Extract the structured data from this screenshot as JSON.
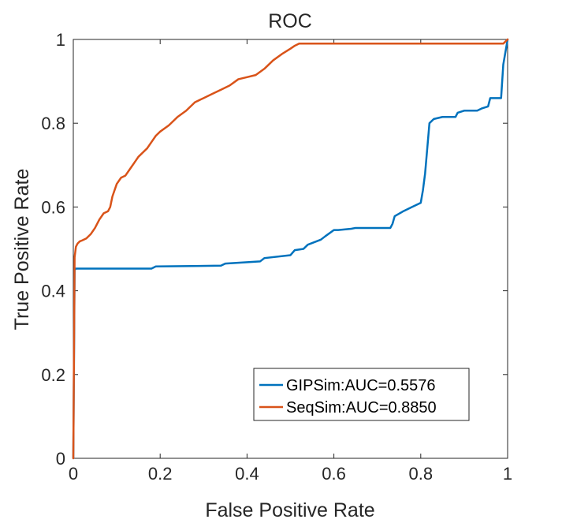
{
  "chart_data": {
    "type": "line",
    "title": "ROC",
    "xlabel": "False Positive Rate",
    "ylabel": "True Positive Rate",
    "xlim": [
      0,
      1
    ],
    "ylim": [
      0,
      1
    ],
    "xticks": [
      0,
      0.2,
      0.4,
      0.6,
      0.8,
      1
    ],
    "yticks": [
      0,
      0.2,
      0.4,
      0.6,
      0.8,
      1
    ],
    "xtick_labels": [
      "0",
      "0.2",
      "0.4",
      "0.6",
      "0.8",
      "1"
    ],
    "ytick_labels": [
      "0",
      "0.2",
      "0.4",
      "0.6",
      "0.8",
      "1"
    ],
    "grid": false,
    "legend_position": "lower-right",
    "series": [
      {
        "name": "GIPSim:AUC=0.5576",
        "color": "#0072BD",
        "x": [
          0,
          0.003,
          0.006,
          0.18,
          0.19,
          0.34,
          0.35,
          0.43,
          0.44,
          0.5,
          0.51,
          0.53,
          0.54,
          0.57,
          0.58,
          0.6,
          0.61,
          0.64,
          0.65,
          0.73,
          0.735,
          0.74,
          0.76,
          0.78,
          0.8,
          0.805,
          0.81,
          0.815,
          0.82,
          0.83,
          0.85,
          0.88,
          0.885,
          0.9,
          0.93,
          0.94,
          0.955,
          0.96,
          0.985,
          0.99,
          1.0
        ],
        "y": [
          0,
          0.45,
          0.453,
          0.453,
          0.458,
          0.46,
          0.465,
          0.47,
          0.478,
          0.485,
          0.497,
          0.5,
          0.51,
          0.522,
          0.53,
          0.545,
          0.545,
          0.548,
          0.55,
          0.55,
          0.56,
          0.578,
          0.59,
          0.6,
          0.61,
          0.64,
          0.68,
          0.74,
          0.8,
          0.81,
          0.815,
          0.815,
          0.825,
          0.83,
          0.83,
          0.835,
          0.84,
          0.86,
          0.86,
          0.94,
          1.0
        ]
      },
      {
        "name": "SeqSim:AUC=0.8850",
        "color": "#D95319",
        "x": [
          0,
          0.003,
          0.006,
          0.01,
          0.015,
          0.02,
          0.03,
          0.04,
          0.05,
          0.06,
          0.07,
          0.08,
          0.085,
          0.09,
          0.1,
          0.11,
          0.12,
          0.13,
          0.14,
          0.15,
          0.16,
          0.17,
          0.18,
          0.19,
          0.2,
          0.22,
          0.24,
          0.26,
          0.28,
          0.3,
          0.32,
          0.34,
          0.36,
          0.38,
          0.4,
          0.42,
          0.44,
          0.46,
          0.48,
          0.5,
          0.51,
          0.52,
          0.6,
          0.7,
          0.8,
          0.9,
          0.98,
          0.99,
          1.0
        ],
        "y": [
          0,
          0.48,
          0.505,
          0.513,
          0.518,
          0.52,
          0.525,
          0.535,
          0.55,
          0.57,
          0.585,
          0.59,
          0.6,
          0.625,
          0.655,
          0.67,
          0.675,
          0.69,
          0.705,
          0.72,
          0.73,
          0.74,
          0.755,
          0.77,
          0.78,
          0.795,
          0.815,
          0.83,
          0.85,
          0.86,
          0.87,
          0.88,
          0.89,
          0.905,
          0.91,
          0.915,
          0.93,
          0.95,
          0.965,
          0.978,
          0.985,
          0.99,
          0.99,
          0.99,
          0.99,
          0.99,
          0.99,
          0.99,
          1.0
        ]
      }
    ]
  }
}
